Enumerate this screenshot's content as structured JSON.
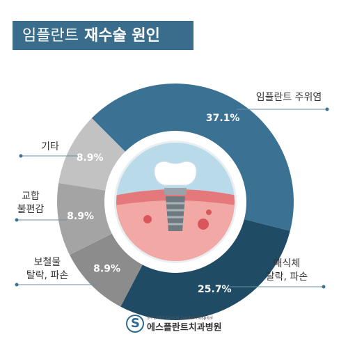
{
  "chart_data": {
    "type": "donut",
    "title_light": "임플란트",
    "title_bold": "재수술 원인",
    "series": [
      {
        "label": [
          "임플란트 주위염"
        ],
        "value": 37.1,
        "value_label": "37.1%",
        "color": "#3b7193"
      },
      {
        "label": [
          "매식체",
          "탈락, 파손"
        ],
        "value": 25.7,
        "value_label": "25.7%",
        "color": "#1f4b65"
      },
      {
        "label": [
          "보철물",
          "탈락, 파손"
        ],
        "value": 8.9,
        "value_label": "8.9%",
        "color": "#8c8c8c"
      },
      {
        "label": [
          "교합",
          "불편감"
        ],
        "value": 8.9,
        "value_label": "8.9%",
        "color": "#a4a4a4"
      },
      {
        "label": [
          "기타"
        ],
        "value": 8.9,
        "value_label": "8.9%",
        "color": "#c2c2c2"
      }
    ],
    "logo_small": "S-PLANT Digital Dental Hospital",
    "logo_name": "에스플란트치과병원"
  }
}
